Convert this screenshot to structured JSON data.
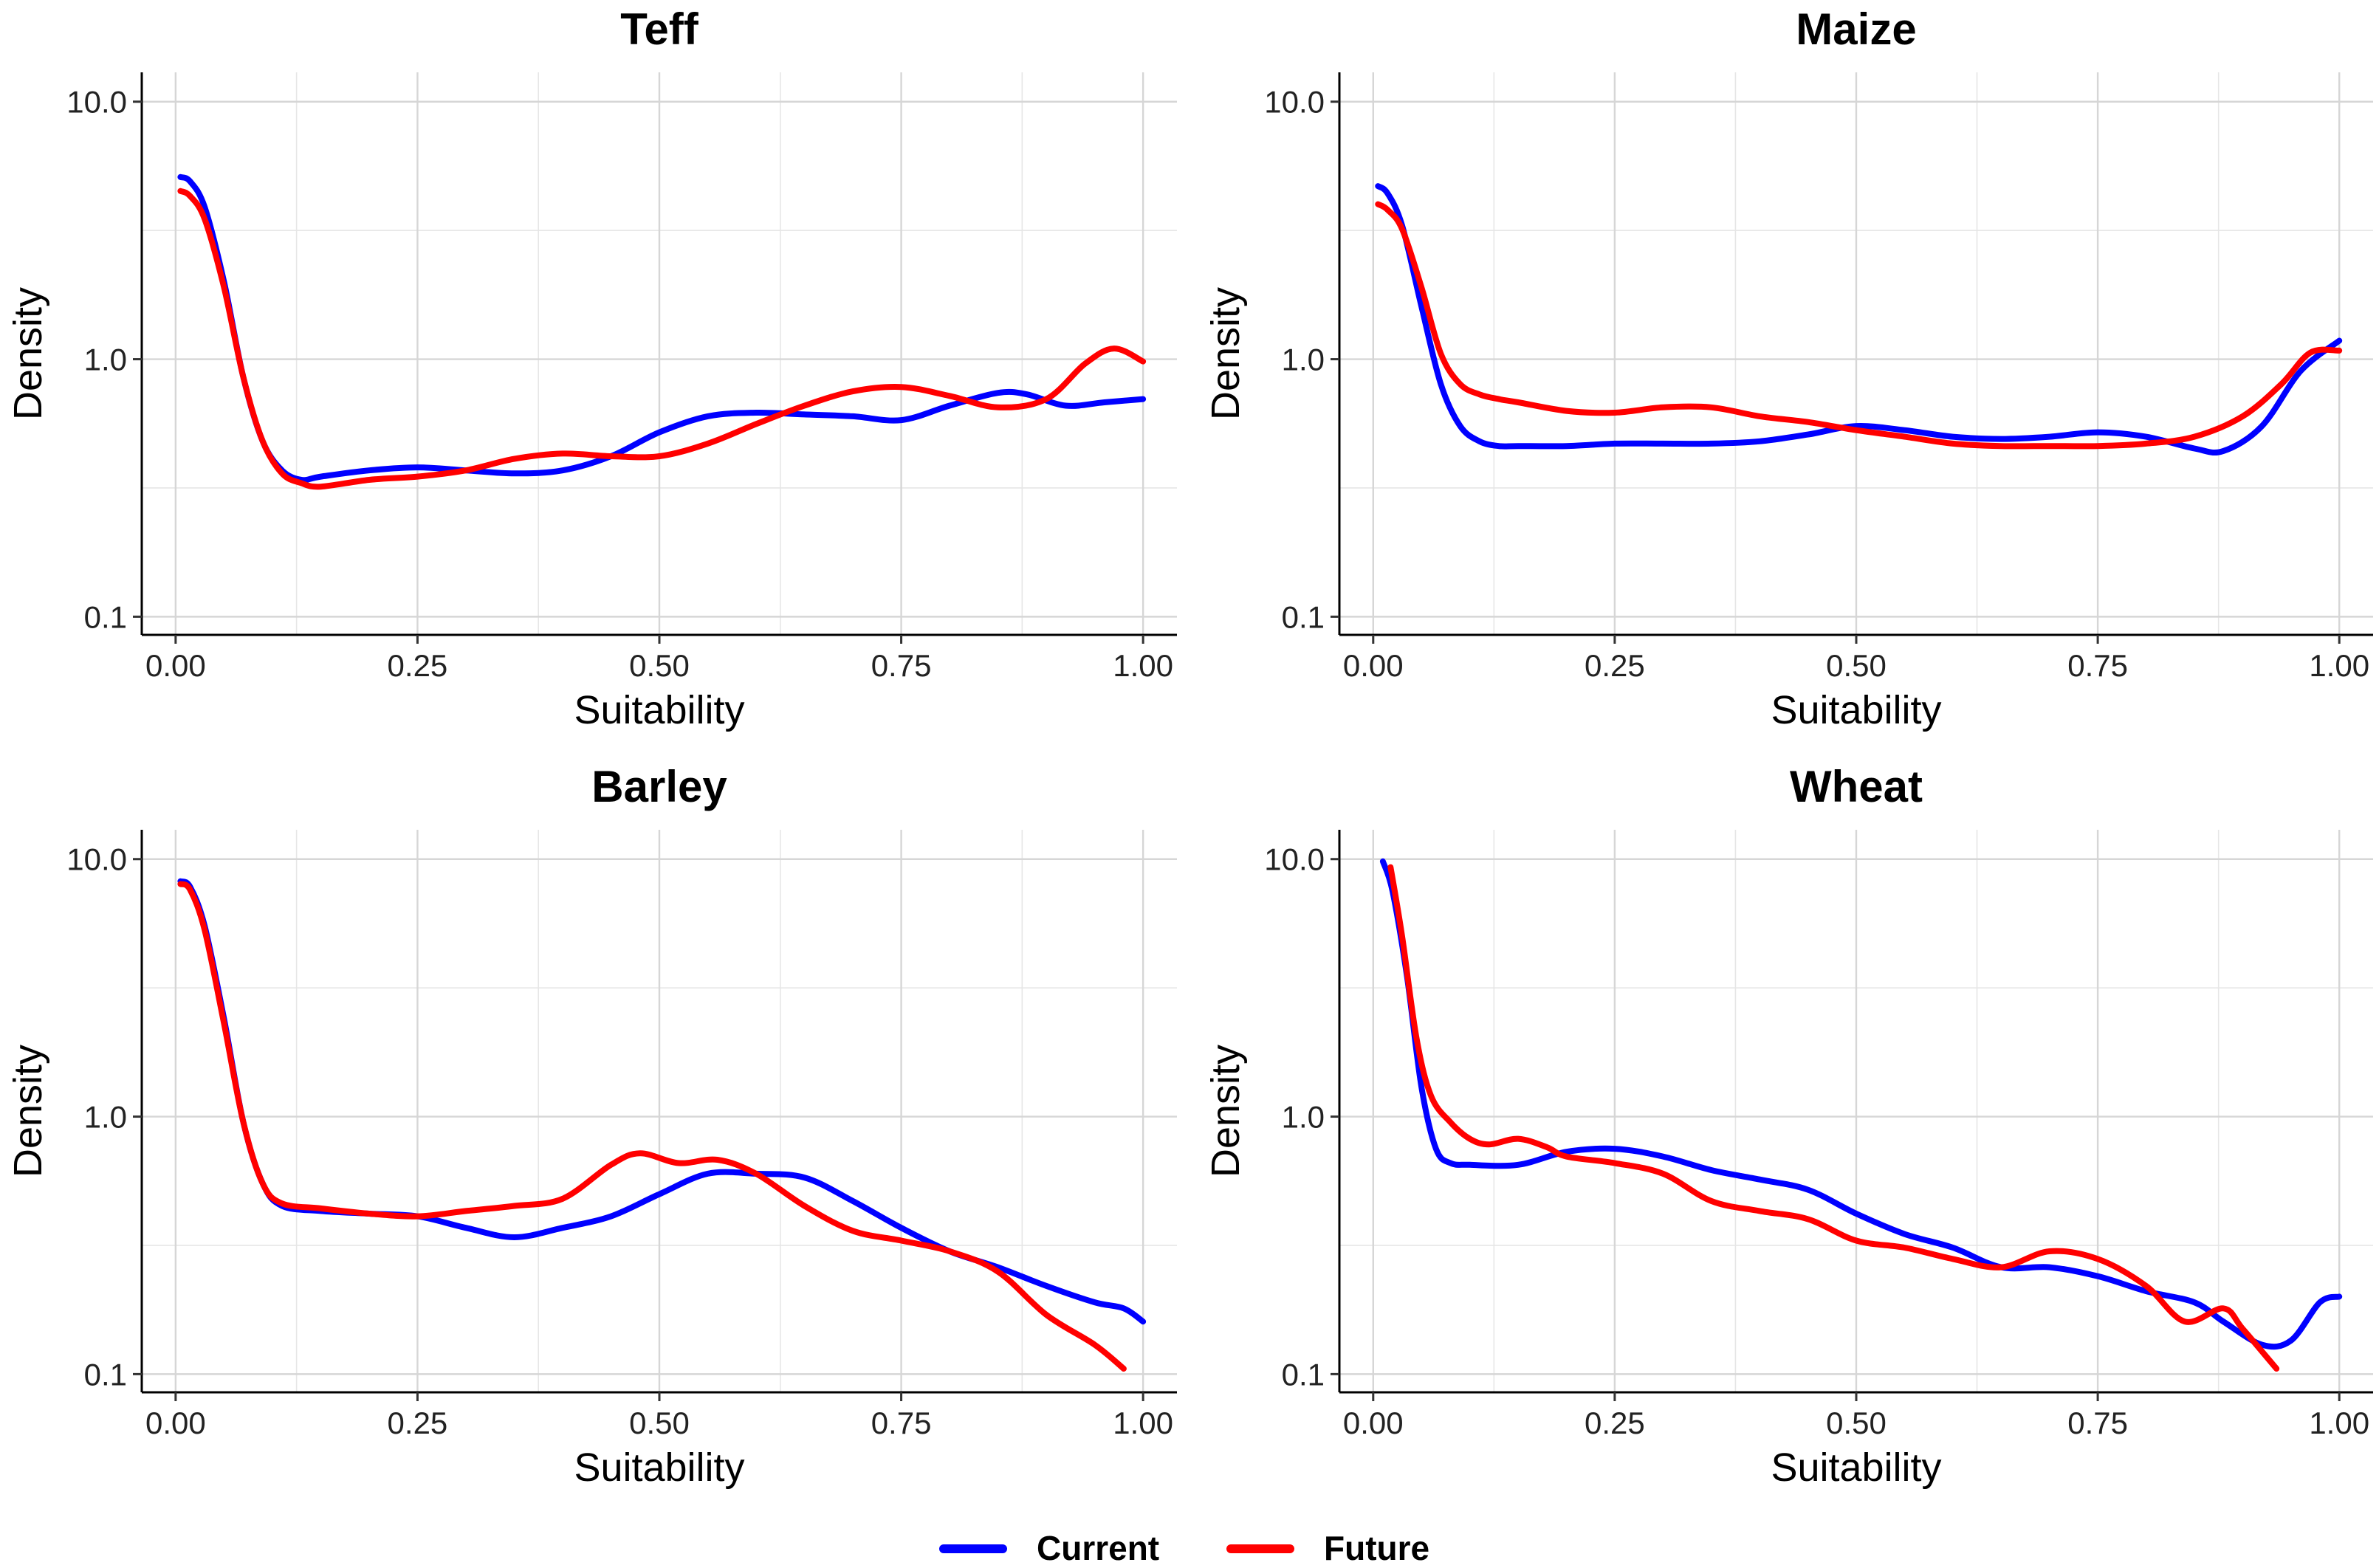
{
  "legend": {
    "items": [
      {
        "label": "Current",
        "color": "#0000ff"
      },
      {
        "label": "Future",
        "color": "#ff0000"
      }
    ]
  },
  "chart_data": [
    {
      "type": "line",
      "title": "Teff",
      "xlabel": "Suitability",
      "ylabel": "Density",
      "xlim": [
        -0.035,
        1.035
      ],
      "ylim": [
        0.085,
        13
      ],
      "yscale": "log10",
      "xticks": [
        0,
        0.25,
        0.5,
        0.75,
        1
      ],
      "xtick_labels": [
        "0.00",
        "0.25",
        "0.50",
        "0.75",
        "1.00"
      ],
      "yticks": [
        0.1,
        1,
        10
      ],
      "ytick_labels": [
        "0.1",
        "1.0",
        "10.0"
      ],
      "series": [
        {
          "name": "Current",
          "color": "#0000ff",
          "x": [
            0.005,
            0.015,
            0.03,
            0.05,
            0.07,
            0.09,
            0.11,
            0.13,
            0.15,
            0.2,
            0.25,
            0.3,
            0.35,
            0.4,
            0.45,
            0.5,
            0.55,
            0.6,
            0.65,
            0.7,
            0.75,
            0.8,
            0.85,
            0.88,
            0.92,
            0.96,
            1.0
          ],
          "y": [
            5.1,
            4.9,
            3.9,
            2.0,
            0.85,
            0.48,
            0.37,
            0.34,
            0.35,
            0.37,
            0.38,
            0.37,
            0.36,
            0.37,
            0.42,
            0.52,
            0.6,
            0.62,
            0.61,
            0.6,
            0.58,
            0.66,
            0.74,
            0.73,
            0.66,
            0.68,
            0.7
          ]
        },
        {
          "name": "Future",
          "color": "#ff0000",
          "x": [
            0.005,
            0.015,
            0.03,
            0.05,
            0.07,
            0.09,
            0.11,
            0.13,
            0.15,
            0.2,
            0.25,
            0.3,
            0.35,
            0.4,
            0.45,
            0.5,
            0.55,
            0.6,
            0.65,
            0.7,
            0.75,
            0.8,
            0.85,
            0.9,
            0.94,
            0.97,
            1.0
          ],
          "y": [
            4.5,
            4.3,
            3.5,
            1.9,
            0.85,
            0.48,
            0.36,
            0.33,
            0.32,
            0.34,
            0.35,
            0.37,
            0.41,
            0.43,
            0.42,
            0.42,
            0.47,
            0.56,
            0.66,
            0.75,
            0.78,
            0.72,
            0.65,
            0.7,
            0.96,
            1.1,
            0.98
          ]
        }
      ]
    },
    {
      "type": "line",
      "title": "Maize",
      "xlabel": "Suitability",
      "ylabel": "Density",
      "xlim": [
        -0.035,
        1.035
      ],
      "ylim": [
        0.085,
        13
      ],
      "yscale": "log10",
      "xticks": [
        0,
        0.25,
        0.5,
        0.75,
        1
      ],
      "xtick_labels": [
        "0.00",
        "0.25",
        "0.50",
        "0.75",
        "1.00"
      ],
      "yticks": [
        0.1,
        1,
        10
      ],
      "ytick_labels": [
        "0.1",
        "1.0",
        "10.0"
      ],
      "series": [
        {
          "name": "Current",
          "color": "#0000ff",
          "x": [
            0.005,
            0.015,
            0.03,
            0.05,
            0.07,
            0.09,
            0.11,
            0.13,
            0.15,
            0.2,
            0.25,
            0.3,
            0.35,
            0.4,
            0.45,
            0.5,
            0.55,
            0.6,
            0.65,
            0.7,
            0.75,
            0.8,
            0.85,
            0.88,
            0.92,
            0.96,
            1.0
          ],
          "y": [
            4.7,
            4.4,
            3.3,
            1.6,
            0.8,
            0.55,
            0.48,
            0.46,
            0.46,
            0.46,
            0.47,
            0.47,
            0.47,
            0.48,
            0.51,
            0.55,
            0.53,
            0.5,
            0.49,
            0.5,
            0.52,
            0.5,
            0.45,
            0.44,
            0.55,
            0.9,
            1.18
          ]
        },
        {
          "name": "Future",
          "color": "#ff0000",
          "x": [
            0.005,
            0.015,
            0.03,
            0.05,
            0.07,
            0.09,
            0.11,
            0.13,
            0.15,
            0.2,
            0.25,
            0.3,
            0.35,
            0.4,
            0.45,
            0.5,
            0.55,
            0.6,
            0.65,
            0.7,
            0.75,
            0.8,
            0.85,
            0.9,
            0.94,
            0.97,
            1.0
          ],
          "y": [
            4.0,
            3.8,
            3.2,
            1.9,
            1.05,
            0.8,
            0.73,
            0.7,
            0.68,
            0.63,
            0.62,
            0.65,
            0.65,
            0.6,
            0.57,
            0.53,
            0.5,
            0.47,
            0.46,
            0.46,
            0.46,
            0.47,
            0.5,
            0.6,
            0.8,
            1.06,
            1.08
          ]
        }
      ]
    },
    {
      "type": "line",
      "title": "Barley",
      "xlabel": "Suitability",
      "ylabel": "Density",
      "xlim": [
        -0.035,
        1.035
      ],
      "ylim": [
        0.085,
        13
      ],
      "yscale": "log10",
      "xticks": [
        0,
        0.25,
        0.5,
        0.75,
        1
      ],
      "xtick_labels": [
        "0.00",
        "0.25",
        "0.50",
        "0.75",
        "1.00"
      ],
      "yticks": [
        0.1,
        1,
        10
      ],
      "ytick_labels": [
        "0.1",
        "1.0",
        "10.0"
      ],
      "series": [
        {
          "name": "Current",
          "color": "#0000ff",
          "x": [
            0.005,
            0.015,
            0.03,
            0.05,
            0.07,
            0.09,
            0.11,
            0.15,
            0.2,
            0.25,
            0.3,
            0.35,
            0.4,
            0.45,
            0.5,
            0.55,
            0.6,
            0.65,
            0.7,
            0.75,
            0.8,
            0.85,
            0.9,
            0.95,
            0.98,
            1.0
          ],
          "y": [
            8.2,
            7.8,
            5.5,
            2.4,
            0.95,
            0.55,
            0.45,
            0.43,
            0.42,
            0.41,
            0.37,
            0.34,
            0.37,
            0.41,
            0.5,
            0.6,
            0.6,
            0.58,
            0.47,
            0.37,
            0.3,
            0.26,
            0.22,
            0.19,
            0.18,
            0.16
          ]
        },
        {
          "name": "Future",
          "color": "#ff0000",
          "x": [
            0.005,
            0.015,
            0.03,
            0.05,
            0.07,
            0.09,
            0.11,
            0.15,
            0.2,
            0.25,
            0.3,
            0.35,
            0.4,
            0.45,
            0.48,
            0.52,
            0.56,
            0.6,
            0.65,
            0.7,
            0.75,
            0.8,
            0.85,
            0.9,
            0.95,
            0.98
          ],
          "y": [
            8.0,
            7.6,
            5.3,
            2.3,
            0.95,
            0.55,
            0.46,
            0.44,
            0.42,
            0.41,
            0.43,
            0.45,
            0.48,
            0.65,
            0.72,
            0.66,
            0.68,
            0.6,
            0.45,
            0.36,
            0.33,
            0.3,
            0.25,
            0.17,
            0.13,
            0.105
          ]
        }
      ]
    },
    {
      "type": "line",
      "title": "Wheat",
      "xlabel": "Suitability",
      "ylabel": "Density",
      "xlim": [
        -0.035,
        1.035
      ],
      "ylim": [
        0.085,
        13
      ],
      "yscale": "log10",
      "xticks": [
        0,
        0.25,
        0.5,
        0.75,
        1
      ],
      "xtick_labels": [
        "0.00",
        "0.25",
        "0.50",
        "0.75",
        "1.00"
      ],
      "yticks": [
        0.1,
        1,
        10
      ],
      "ytick_labels": [
        "0.1",
        "1.0",
        "10.0"
      ],
      "series": [
        {
          "name": "Current",
          "color": "#0000ff",
          "x": [
            0.01,
            0.02,
            0.035,
            0.05,
            0.065,
            0.08,
            0.1,
            0.15,
            0.2,
            0.25,
            0.3,
            0.35,
            0.4,
            0.45,
            0.5,
            0.55,
            0.6,
            0.65,
            0.7,
            0.75,
            0.8,
            0.85,
            0.88,
            0.92,
            0.95,
            0.98,
            1.0
          ],
          "y": [
            9.8,
            7.5,
            3.5,
            1.3,
            0.75,
            0.66,
            0.65,
            0.65,
            0.73,
            0.75,
            0.7,
            0.62,
            0.57,
            0.52,
            0.42,
            0.35,
            0.31,
            0.26,
            0.26,
            0.24,
            0.21,
            0.19,
            0.16,
            0.13,
            0.135,
            0.19,
            0.2
          ]
        },
        {
          "name": "Future",
          "color": "#ff0000",
          "x": [
            0.018,
            0.03,
            0.045,
            0.06,
            0.08,
            0.1,
            0.12,
            0.15,
            0.18,
            0.2,
            0.25,
            0.3,
            0.35,
            0.4,
            0.45,
            0.5,
            0.55,
            0.6,
            0.65,
            0.7,
            0.75,
            0.8,
            0.84,
            0.88,
            0.9,
            0.935
          ],
          "y": [
            9.3,
            5.0,
            2.0,
            1.2,
            0.95,
            0.82,
            0.78,
            0.82,
            0.76,
            0.7,
            0.66,
            0.6,
            0.47,
            0.43,
            0.4,
            0.33,
            0.31,
            0.28,
            0.26,
            0.3,
            0.28,
            0.22,
            0.16,
            0.18,
            0.15,
            0.105
          ]
        }
      ]
    }
  ]
}
